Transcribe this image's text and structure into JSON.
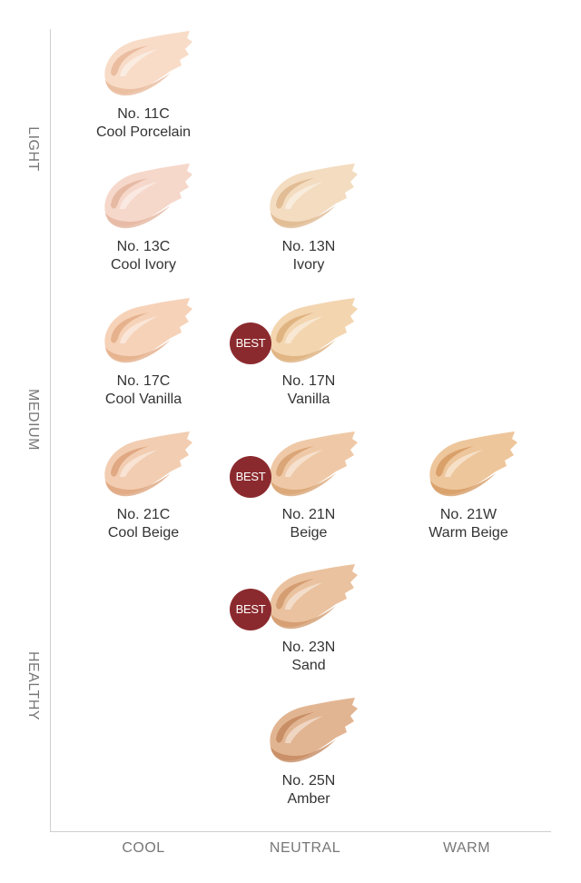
{
  "axes": {
    "y_labels": [
      "LIGHT",
      "MEDIUM",
      "HEALTHY"
    ],
    "x_labels": [
      "COOL",
      "NEUTRAL",
      "WARM"
    ]
  },
  "badge": {
    "text": "BEST",
    "color": "#8b2a2e"
  },
  "shades": [
    {
      "code": "No. 11C",
      "name": "Cool Porcelain",
      "column": "COOL",
      "best": false,
      "color": "#f8dcc8",
      "shadow": "#e7b596"
    },
    {
      "code": "No. 13C",
      "name": "Cool Ivory",
      "column": "COOL",
      "best": false,
      "color": "#f6d8cb",
      "shadow": "#e2b199"
    },
    {
      "code": "No. 13N",
      "name": "Ivory",
      "column": "NEUTRAL",
      "best": false,
      "color": "#f3dcc0",
      "shadow": "#dcb48a"
    },
    {
      "code": "No. 17C",
      "name": "Cool Vanilla",
      "column": "COOL",
      "best": false,
      "color": "#f6d2b8",
      "shadow": "#e2aa83"
    },
    {
      "code": "No. 17N",
      "name": "Vanilla",
      "column": "NEUTRAL",
      "best": true,
      "color": "#f3d5b0",
      "shadow": "#dbab75"
    },
    {
      "code": "No. 21C",
      "name": "Cool Beige",
      "column": "COOL",
      "best": false,
      "color": "#f2cdb1",
      "shadow": "#db9f78"
    },
    {
      "code": "No. 21N",
      "name": "Beige",
      "column": "NEUTRAL",
      "best": true,
      "color": "#efc9a7",
      "shadow": "#d69d6b"
    },
    {
      "code": "No. 21W",
      "name": "Warm Beige",
      "column": "WARM",
      "best": false,
      "color": "#eec69c",
      "shadow": "#d3965c"
    },
    {
      "code": "No. 23N",
      "name": "Sand",
      "column": "NEUTRAL",
      "best": true,
      "color": "#eac29f",
      "shadow": "#cf9466"
    },
    {
      "code": "No. 25N",
      "name": "Amber",
      "column": "NEUTRAL",
      "best": false,
      "color": "#e2b592",
      "shadow": "#c2845a"
    }
  ]
}
